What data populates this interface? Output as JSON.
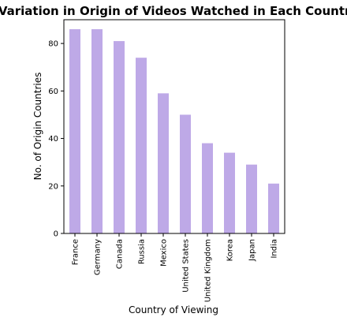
{
  "chart_data": {
    "type": "bar",
    "title": "Variation in Origin of Videos Watched in Each Country",
    "xlabel": "Country of Viewing",
    "ylabel": "No. of Origin Countries",
    "categories": [
      "France",
      "Germany",
      "Canada",
      "Russia",
      "Mexico",
      "United States",
      "United Kingdom",
      "Korea",
      "Japan",
      "India"
    ],
    "values": [
      86,
      86,
      81,
      74,
      59,
      50,
      38,
      34,
      29,
      21
    ],
    "ylim": [
      0,
      90
    ],
    "yticks": [
      0,
      20,
      40,
      60,
      80
    ],
    "grid": false,
    "bar_color": "#bea9e7"
  }
}
